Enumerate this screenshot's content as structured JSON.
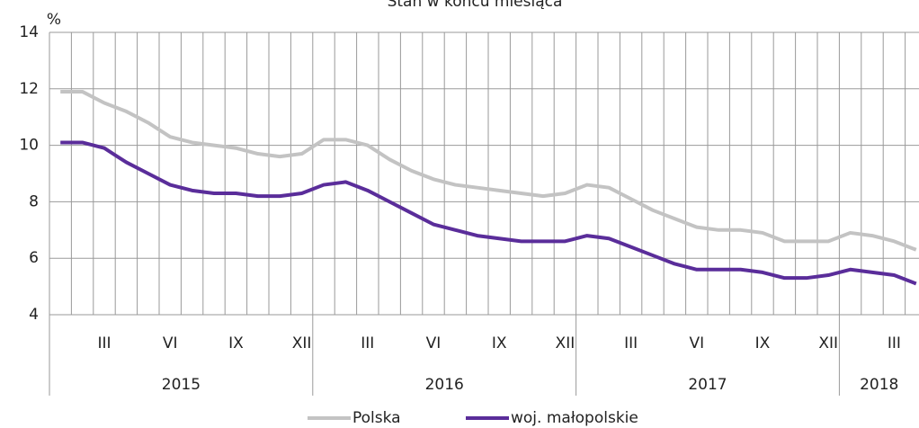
{
  "chart_data": {
    "type": "line",
    "title": "Stan w końcu miesiąca",
    "y_label": "%",
    "categories": [
      null,
      null,
      "III",
      null,
      null,
      "VI",
      null,
      null,
      "IX",
      null,
      null,
      "XII",
      null,
      null,
      "III",
      null,
      null,
      "VI",
      null,
      null,
      "IX",
      null,
      null,
      "XII",
      null,
      null,
      "III",
      null,
      null,
      "VI",
      null,
      null,
      "IX",
      null,
      null,
      "XII",
      null,
      null,
      "III",
      null
    ],
    "groups": [
      {
        "label": "2015",
        "size": 12
      },
      {
        "label": "2016",
        "size": 12
      },
      {
        "label": "2017",
        "size": 12
      },
      {
        "label": "2018",
        "size": 4
      }
    ],
    "series": [
      {
        "name": "Polska",
        "color": "#c3c3c3",
        "values": [
          11.9,
          11.9,
          11.5,
          11.2,
          10.8,
          10.3,
          10.1,
          10.0,
          9.9,
          9.7,
          9.6,
          9.7,
          10.2,
          10.2,
          10.0,
          9.5,
          9.1,
          8.8,
          8.6,
          8.5,
          8.4,
          8.3,
          8.2,
          8.3,
          8.6,
          8.5,
          8.1,
          7.7,
          7.4,
          7.1,
          7.0,
          7.0,
          6.9,
          6.6,
          6.6,
          6.6,
          6.9,
          6.8,
          6.6,
          6.3
        ]
      },
      {
        "name": "woj. małopolskie",
        "color": "#5a2d9a",
        "values": [
          10.1,
          10.1,
          9.9,
          9.4,
          9.0,
          8.6,
          8.4,
          8.3,
          8.3,
          8.2,
          8.2,
          8.3,
          8.6,
          8.7,
          8.4,
          8.0,
          7.6,
          7.2,
          7.0,
          6.8,
          6.7,
          6.6,
          6.6,
          6.6,
          6.8,
          6.7,
          6.4,
          6.1,
          5.8,
          5.6,
          5.6,
          5.6,
          5.5,
          5.3,
          5.3,
          5.4,
          5.6,
          5.5,
          5.4,
          5.1
        ]
      }
    ],
    "ylim": [
      4,
      14
    ],
    "yticks": [
      4,
      6,
      8,
      10,
      12,
      14
    ],
    "grid": true
  }
}
